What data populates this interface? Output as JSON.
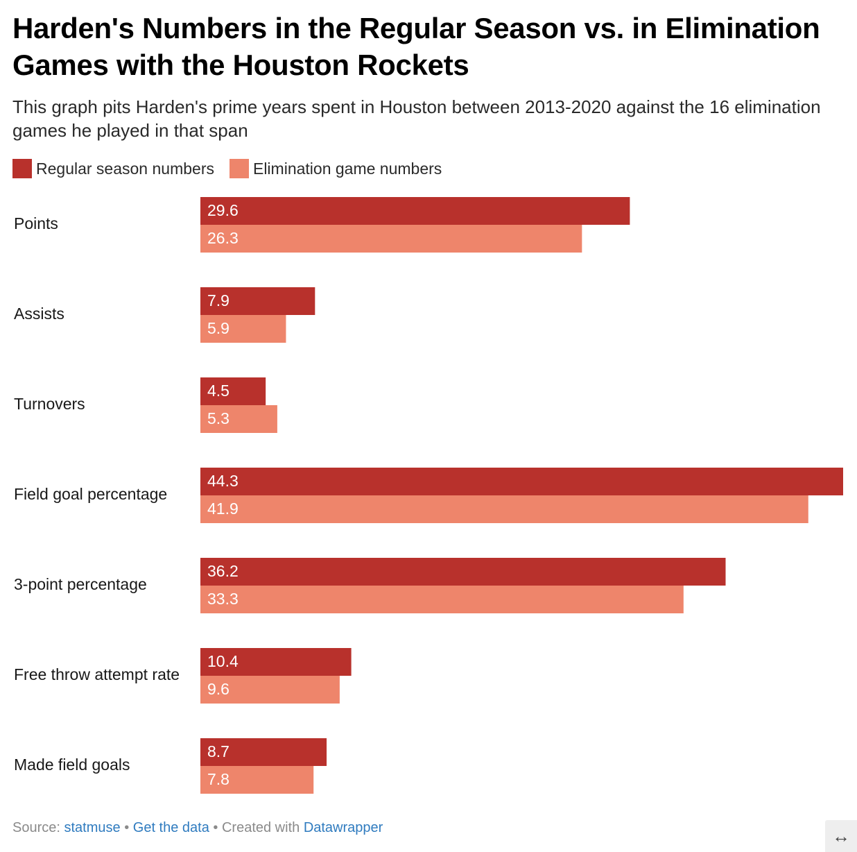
{
  "title": "Harden's Numbers in the Regular Season vs. in Elimination Games with the Houston Rockets",
  "subtitle": "This graph pits Harden's prime years spent in Houston between 2013-2020 against the 16 elimination games he played in that span",
  "legend": [
    {
      "label": "Regular season numbers",
      "color": "#b8312c"
    },
    {
      "label": "Elimination game numbers",
      "color": "#ee856b"
    }
  ],
  "chart_data": {
    "type": "bar",
    "orientation": "horizontal",
    "categories": [
      "Points",
      "Assists",
      "Turnovers",
      "Field goal percentage",
      "3-point percentage",
      "Free throw attempt rate",
      "Made field goals"
    ],
    "series": [
      {
        "name": "Regular season numbers",
        "color": "#b8312c",
        "values": [
          29.6,
          7.9,
          4.5,
          44.3,
          36.2,
          10.4,
          8.7
        ]
      },
      {
        "name": "Elimination game numbers",
        "color": "#ee856b",
        "values": [
          26.3,
          5.9,
          5.3,
          41.9,
          33.3,
          9.6,
          7.8
        ]
      }
    ],
    "xlim": [
      0,
      44.3
    ],
    "grid": false,
    "legend_position": "top-left",
    "data_labels": "inside-left"
  },
  "footer": {
    "source_prefix": "Source: ",
    "source_link": "statmuse",
    "separator": " • ",
    "data_link": "Get the data",
    "created_prefix": "Created with ",
    "created_link": "Datawrapper"
  },
  "expand_icon": "↔"
}
